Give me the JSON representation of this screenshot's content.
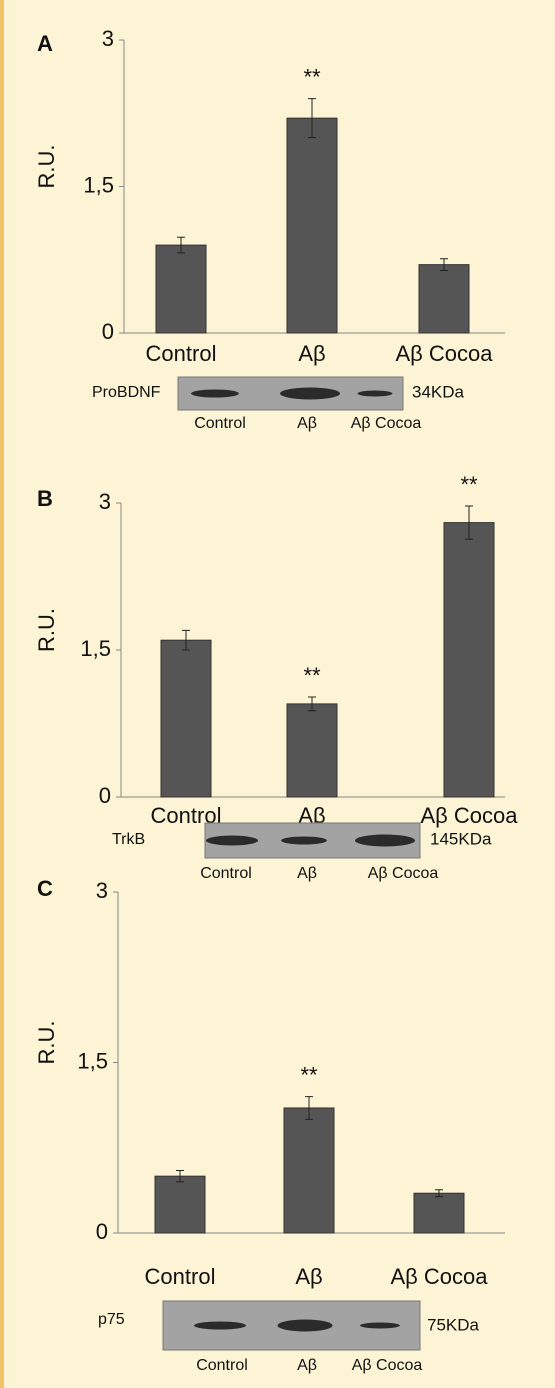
{
  "chart_data": [
    {
      "type": "bar",
      "panel": "A",
      "ylabel": "R.U.",
      "categories": [
        "Control",
        "Aβ",
        "Aβ Cocoa"
      ],
      "values": [
        0.9,
        2.2,
        0.7
      ],
      "errors": [
        0.08,
        0.2,
        0.06
      ],
      "significance": [
        null,
        "**",
        null
      ],
      "color": "#555555",
      "ylim": [
        0,
        3
      ],
      "yticks": [
        0,
        {
          "value": 1.5,
          "label": "1,5"
        },
        3
      ],
      "blot": {
        "label": "ProBDNF",
        "size": "34KDa",
        "lanes": [
          "Control",
          "Aβ",
          "Aβ Cocoa"
        ]
      }
    },
    {
      "type": "bar",
      "panel": "B",
      "ylabel": "R.U.",
      "categories": [
        "Control",
        "Aβ",
        "Aβ Cocoa"
      ],
      "values": [
        1.6,
        0.95,
        2.8
      ],
      "errors": [
        0.1,
        0.07,
        0.17
      ],
      "significance": [
        null,
        "**",
        "**"
      ],
      "color": "#555555",
      "ylim": [
        0,
        3
      ],
      "yticks": [
        0,
        {
          "value": 1.5,
          "label": "1,5"
        },
        3
      ],
      "blot": {
        "label": "TrkB",
        "size": "145KDa",
        "lanes": [
          "Control",
          "Aβ",
          "Aβ Cocoa"
        ]
      }
    },
    {
      "type": "bar",
      "panel": "C",
      "ylabel": "R.U.",
      "categories": [
        "Control",
        "Aβ",
        "Aβ Cocoa"
      ],
      "values": [
        0.5,
        1.1,
        0.35
      ],
      "errors": [
        0.05,
        0.1,
        0.03
      ],
      "significance": [
        null,
        "**",
        null
      ],
      "color": "#555555",
      "ylim": [
        0,
        3
      ],
      "yticks": [
        0,
        {
          "value": 1.5,
          "label": "1,5"
        },
        3
      ],
      "blot": {
        "label": "p75",
        "size": "75KDa",
        "lanes": [
          "Control",
          "Aβ",
          "Aβ Cocoa"
        ]
      }
    }
  ]
}
